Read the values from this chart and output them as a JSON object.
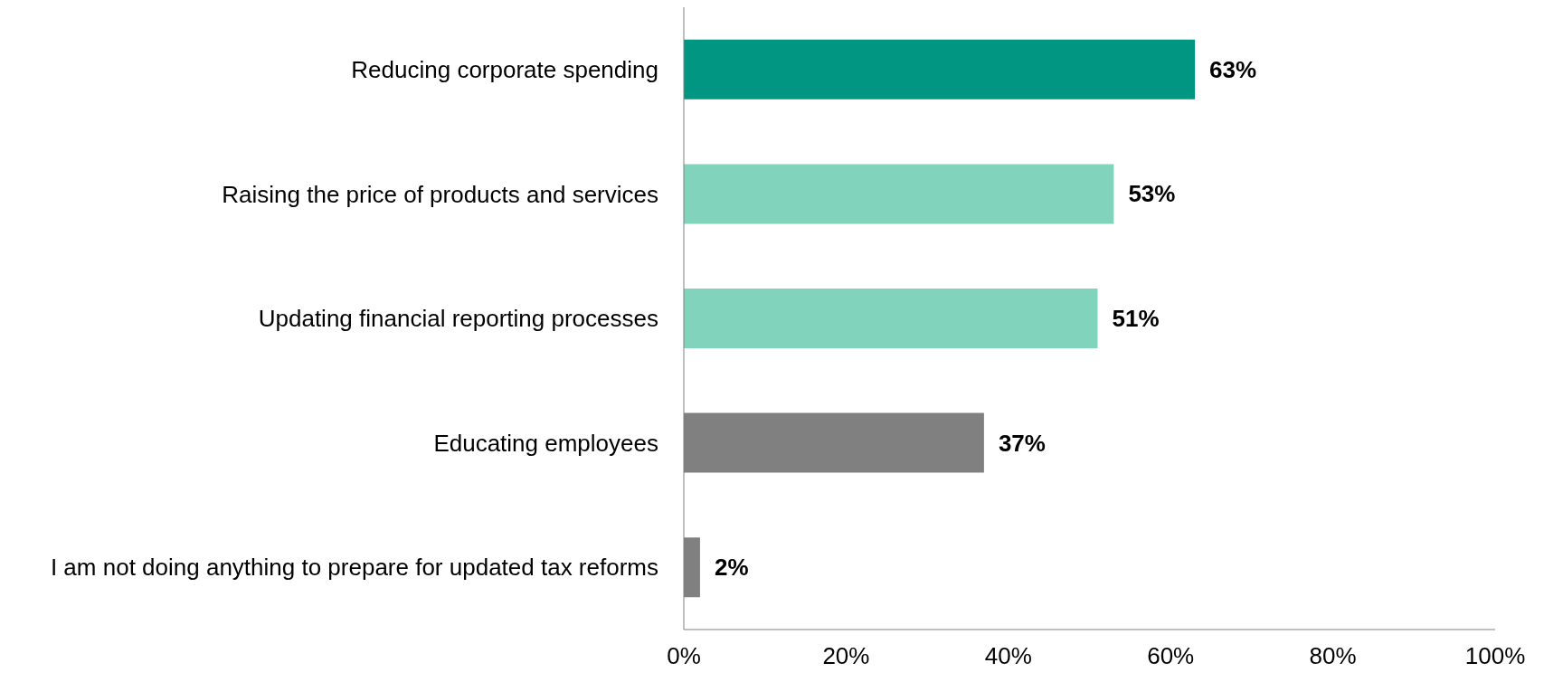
{
  "chart_data": {
    "type": "bar",
    "orientation": "horizontal",
    "categories": [
      "Reducing corporate spending",
      "Raising the price of products and services",
      "Updating financial reporting processes",
      "Educating employees",
      "I am not doing anything to prepare for updated tax reforms"
    ],
    "values": [
      63,
      53,
      51,
      37,
      2
    ],
    "colors": [
      "#009681",
      "#81d4bb",
      "#81d4bb",
      "#808080",
      "#808080"
    ],
    "value_labels": [
      "63%",
      "53%",
      "51%",
      "37%",
      "2%"
    ],
    "xlim": [
      0,
      100
    ],
    "xticks": [
      {
        "value": 0,
        "label": "0%"
      },
      {
        "value": 20,
        "label": "20%"
      },
      {
        "value": 40,
        "label": "40%"
      },
      {
        "value": 60,
        "label": "60%"
      },
      {
        "value": 80,
        "label": "80%"
      },
      {
        "value": 100,
        "label": "100%"
      }
    ],
    "grid": false,
    "legend": false
  }
}
